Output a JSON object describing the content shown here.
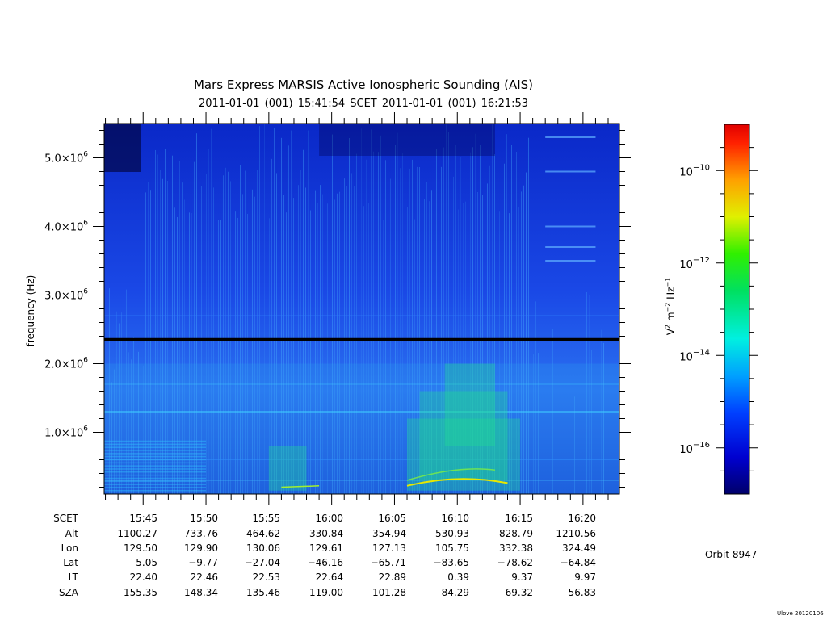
{
  "title": "Mars Express MARSIS Active Ionospheric Sounding (AIS)",
  "subtitle": "2011-01-01 (001) 15:41:54    SCET    2011-01-01 (001) 16:21:53",
  "orbit": "Orbit 8947",
  "credit": "Ulove 20120106",
  "chart_data": {
    "type": "heatmap",
    "title": "Mars Express MARSIS Active Ionospheric Sounding (AIS)",
    "ylabel": "frequency (Hz)",
    "y_ticks": [
      {
        "value": 1000000,
        "mant": "1.0×10",
        "exp": "6"
      },
      {
        "value": 2000000,
        "mant": "2.0×10",
        "exp": "6"
      },
      {
        "value": 3000000,
        "mant": "3.0×10",
        "exp": "6"
      },
      {
        "value": 4000000,
        "mant": "4.0×10",
        "exp": "6"
      },
      {
        "value": 5000000,
        "mant": "5.0×10",
        "exp": "6"
      }
    ],
    "ylim": [
      100000,
      5500000
    ],
    "x_ticks": [
      "15:45",
      "15:50",
      "15:55",
      "16:00",
      "16:05",
      "16:10",
      "16:15",
      "16:20"
    ],
    "xlim_minutes": [
      -3.1,
      37.9
    ],
    "colorbar": {
      "label": "V² m⁻² Hz⁻¹",
      "scale": "log",
      "range_exp": [
        -17,
        -9
      ],
      "ticks": [
        {
          "exp": -10,
          "text": "10",
          "sup": "−10"
        },
        {
          "exp": -12,
          "text": "10",
          "sup": "−12"
        },
        {
          "exp": -14,
          "text": "10",
          "sup": "−14"
        },
        {
          "exp": -16,
          "text": "10",
          "sup": "−16"
        }
      ]
    },
    "ephemeris": {
      "rows": [
        {
          "label": "SCET",
          "values": [
            "15:45",
            "15:50",
            "15:55",
            "16:00",
            "16:05",
            "16:10",
            "16:15",
            "16:20"
          ]
        },
        {
          "label": "Alt",
          "values": [
            "1100.27",
            "733.76",
            "464.62",
            "330.84",
            "354.94",
            "530.93",
            "828.79",
            "1210.56"
          ]
        },
        {
          "label": "Lon",
          "values": [
            "129.50",
            "129.90",
            "130.06",
            "129.61",
            "127.13",
            "105.75",
            "332.38",
            "324.49"
          ]
        },
        {
          "label": "Lat",
          "values": [
            "5.05",
            "−9.77",
            "−27.04",
            "−46.16",
            "−65.71",
            "−83.65",
            "−78.62",
            "−64.84"
          ]
        },
        {
          "label": "LT",
          "values": [
            "22.40",
            "22.46",
            "22.53",
            "22.64",
            "22.89",
            "0.39",
            "9.37",
            "9.97"
          ]
        },
        {
          "label": "SZA",
          "values": [
            "155.35",
            "148.34",
            "135.46",
            "119.00",
            "101.28",
            "84.29",
            "69.32",
            "56.83"
          ]
        }
      ]
    }
  }
}
